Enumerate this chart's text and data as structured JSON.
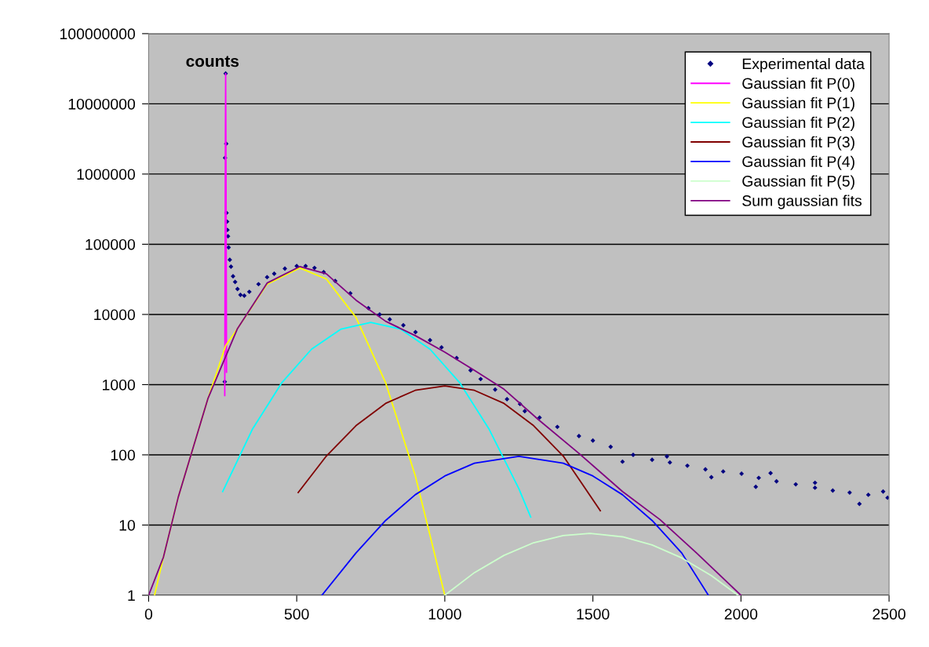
{
  "chart_data": {
    "type": "line",
    "ylabel": "counts",
    "log": "y",
    "grid": "y",
    "legend": "top right",
    "xlim": [
      0,
      2500
    ],
    "xticks": [
      0,
      500,
      1000,
      1500,
      2000,
      2500
    ],
    "ylim": [
      1,
      100000000
    ],
    "yticks": [
      1,
      10,
      100,
      1000,
      10000,
      100000,
      1000000,
      10000000,
      100000000
    ],
    "series": [
      {
        "name": "Experimental data",
        "type": "scatter",
        "marker": "diamond",
        "color": "#000080",
        "x": [
          257,
          258,
          260,
          262,
          263,
          265,
          266,
          268,
          270,
          274,
          278,
          285,
          292,
          300,
          310,
          323,
          340,
          371,
          400,
          424,
          460,
          500,
          530,
          560,
          591,
          630,
          681,
          742,
          780,
          814,
          860,
          901,
          950,
          989,
          1040,
          1087,
          1121,
          1170,
          1210,
          1254,
          1270,
          1320,
          1380,
          1453,
          1500,
          1560,
          1600,
          1636,
          1700,
          1750,
          1760,
          1819,
          1880,
          1900,
          1940,
          2002,
          2050,
          2060,
          2100,
          2120,
          2185,
          2250,
          2250,
          2310,
          2367,
          2400,
          2430,
          2480,
          2495
        ],
        "values": [
          1100,
          1700000,
          27000000,
          2700000,
          280000,
          210000,
          160000,
          130000,
          90000,
          60000,
          48000,
          35000,
          29000,
          23000,
          19000,
          18500,
          21000,
          27000,
          34000,
          38000,
          45000,
          49000,
          49000,
          46000,
          40000,
          30000,
          20000,
          12300,
          10000,
          8500,
          7000,
          5600,
          4300,
          3400,
          2400,
          1600,
          1200,
          850,
          620,
          530,
          420,
          340,
          250,
          185,
          160,
          130,
          80,
          100,
          85,
          95,
          78,
          70,
          62,
          48,
          58,
          54,
          35,
          47,
          55,
          42,
          38,
          34,
          40,
          31,
          29,
          20,
          27,
          30,
          24.5
        ]
      },
      {
        "name": "Gaussian fit P(0)",
        "color": "#ff00ff",
        "x": [
          257,
          259,
          260,
          261,
          263
        ],
        "values": [
          700,
          2000000,
          27000000,
          2000000,
          1500
        ]
      },
      {
        "name": "Gaussian fit P(1)",
        "color": "#ffff00",
        "x": [
          20,
          50,
          100,
          200,
          260,
          300,
          400,
          510,
          600,
          700,
          800,
          900,
          1000
        ],
        "values": [
          1,
          3.5,
          25,
          630,
          3600,
          6300,
          27000,
          46000,
          32000,
          9100,
          1070,
          51,
          1
        ]
      },
      {
        "name": "Gaussian fit P(2)",
        "color": "#00ffff",
        "x": [
          250,
          350,
          450,
          550,
          650,
          750,
          850,
          950,
          1050,
          1150,
          1250,
          1290
        ],
        "values": [
          30,
          230,
          1070,
          3200,
          6200,
          7700,
          6200,
          3200,
          1070,
          230,
          33,
          13
        ]
      },
      {
        "name": "Gaussian fit P(3)",
        "color": "#800000",
        "x": [
          505,
          600,
          700,
          800,
          900,
          1000,
          1100,
          1200,
          1300,
          1400,
          1525
        ],
        "values": [
          29,
          96,
          260,
          540,
          830,
          960,
          830,
          540,
          260,
          96,
          16
        ]
      },
      {
        "name": "Gaussian fit P(4)",
        "color": "#0000ff",
        "x": [
          585,
          700,
          800,
          900,
          1000,
          1100,
          1250,
          1400,
          1500,
          1600,
          1700,
          1800,
          1890
        ],
        "values": [
          1,
          4,
          11.6,
          27,
          50,
          76,
          95,
          76,
          50,
          27,
          11.6,
          4,
          1
        ]
      },
      {
        "name": "Gaussian fit P(5)",
        "color": "#ccffcc",
        "x": [
          1000,
          1100,
          1200,
          1300,
          1400,
          1490,
          1600,
          1700,
          1800,
          1900,
          1990
        ],
        "values": [
          1,
          2.1,
          3.7,
          5.6,
          7.1,
          7.6,
          6.8,
          5.2,
          3.4,
          1.9,
          1
        ]
      },
      {
        "name": "Sum gaussian fits",
        "color": "#800080",
        "x": [
          0,
          50,
          100,
          200,
          300,
          400,
          510,
          600,
          700,
          800,
          900,
          1000,
          1100,
          1200,
          1315,
          1453,
          1600,
          1726,
          1850,
          2000
        ],
        "values": [
          1,
          3.5,
          25,
          630,
          6300,
          28000,
          48000,
          38000,
          16000,
          8000,
          5000,
          2900,
          1600,
          860,
          320,
          105,
          30,
          12,
          4,
          1
        ]
      }
    ]
  }
}
